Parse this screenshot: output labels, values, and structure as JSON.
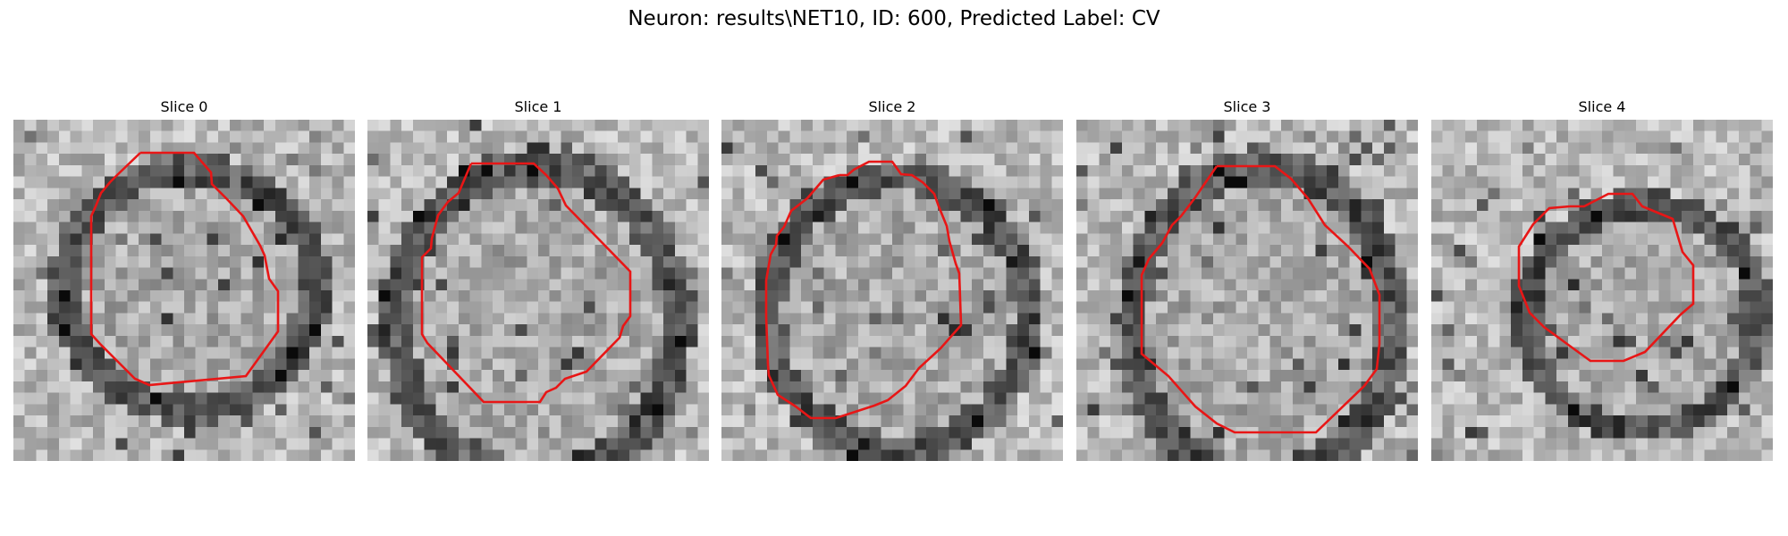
{
  "figure": {
    "title": "Neuron: results\\NET10, ID: 600, Predicted Label: CV"
  },
  "contour_color": "#e81616",
  "panels": [
    {
      "title": "Slice 0"
    },
    {
      "title": "Slice 1"
    },
    {
      "title": "Slice 2"
    },
    {
      "title": "Slice 3"
    },
    {
      "title": "Slice 4"
    }
  ]
}
